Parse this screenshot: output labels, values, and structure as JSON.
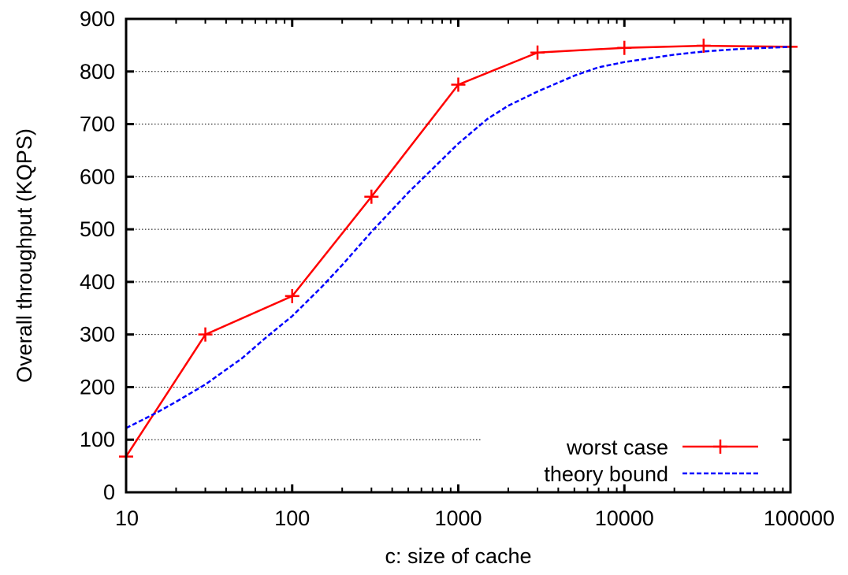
{
  "chart_data": {
    "type": "line",
    "xlabel": "c: size of cache",
    "ylabel": "Overall throughput (KQPS)",
    "xscale": "log",
    "xlim": [
      10,
      100000
    ],
    "ylim": [
      0,
      900
    ],
    "xticks": [
      10,
      100,
      1000,
      10000,
      100000
    ],
    "xtick_labels": [
      "10",
      "100",
      "1000",
      "10000",
      "100000"
    ],
    "yticks": [
      0,
      100,
      200,
      300,
      400,
      500,
      600,
      700,
      800,
      900
    ],
    "ytick_labels": [
      "0",
      "100",
      "200",
      "300",
      "400",
      "500",
      "600",
      "700",
      "800",
      "900"
    ],
    "grid": "horizontal dotted",
    "legend_position": "bottom-right",
    "series": [
      {
        "name": "worst case",
        "color": "#ff0000",
        "style": "solid",
        "marker": "plus",
        "x": [
          10,
          30,
          100,
          300,
          1000,
          3000,
          10000,
          30000,
          100000
        ],
        "y": [
          68,
          300,
          373,
          562,
          775,
          836,
          845,
          849,
          847
        ]
      },
      {
        "name": "theory bound",
        "color": "#0000ff",
        "style": "dashed",
        "marker": "none",
        "x": [
          10,
          15,
          20,
          30,
          50,
          70,
          100,
          150,
          200,
          300,
          500,
          700,
          1000,
          1500,
          2000,
          3000,
          5000,
          7000,
          10000,
          20000,
          30000,
          50000,
          100000
        ],
        "y": [
          122,
          150,
          172,
          205,
          255,
          295,
          335,
          390,
          432,
          495,
          570,
          615,
          663,
          710,
          735,
          762,
          792,
          808,
          818,
          832,
          838,
          843,
          847
        ]
      }
    ]
  }
}
